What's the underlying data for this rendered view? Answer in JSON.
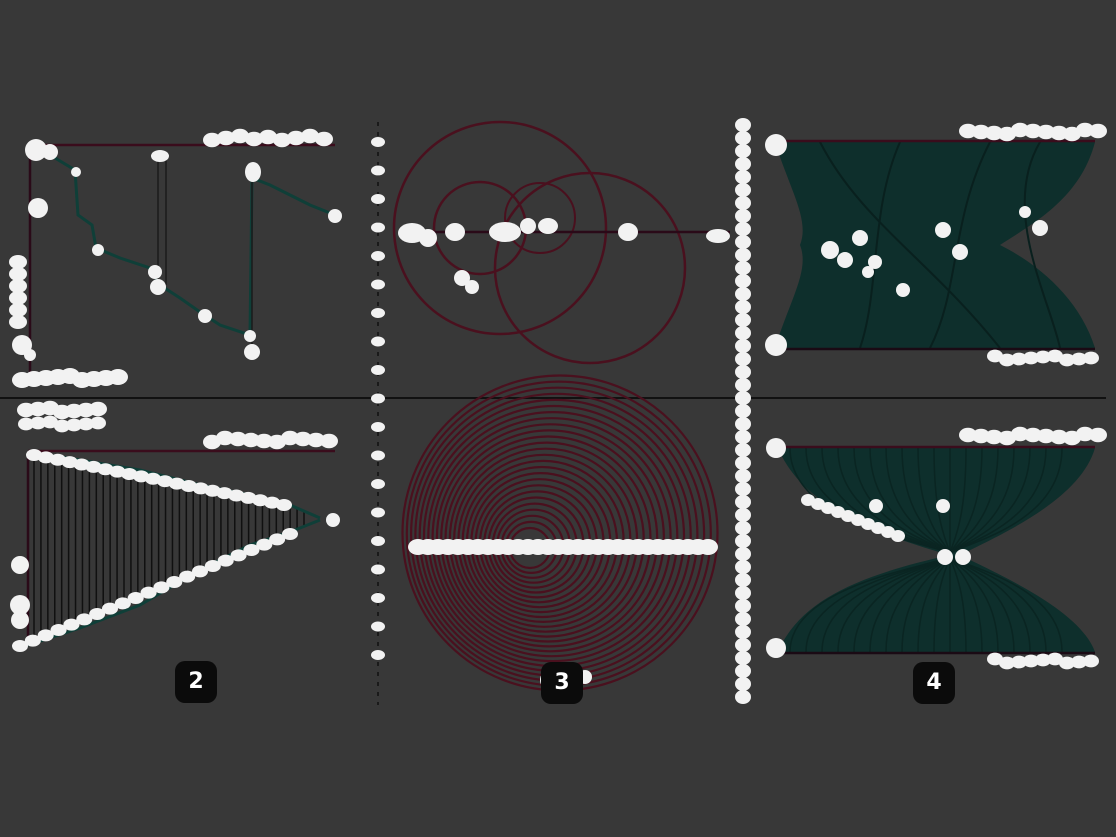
{
  "colors": {
    "background": "#383838",
    "ink_dark": "#0e0e0e",
    "trace_teal": "#0f3f38",
    "arc_maroon": "#4a101e",
    "ribbon_fill": "#0c2e2b",
    "blob_white": "#f2f2f2",
    "badge_bg": "#0b0b0b"
  },
  "panels": [
    {
      "id": "top-left",
      "kind": "step-trace",
      "icon": "step-line-icon"
    },
    {
      "id": "top-middle",
      "kind": "circle-arcs",
      "icon": "concentric-circles-icon"
    },
    {
      "id": "top-right",
      "kind": "ribbon-flow",
      "icon": "ribbon-flow-icon"
    },
    {
      "id": "bottom-left",
      "kind": "funnel-lines",
      "icon": "funnel-icon"
    },
    {
      "id": "bottom-middle",
      "kind": "spiral-arcs",
      "icon": "spiral-icon"
    },
    {
      "id": "bottom-right",
      "kind": "hourglass-flow",
      "icon": "hourglass-icon"
    }
  ],
  "badges": [
    {
      "label": "2",
      "icon": "badge-icon"
    },
    {
      "label": "3",
      "icon": "badge-icon"
    },
    {
      "label": "4",
      "icon": "badge-icon"
    }
  ]
}
